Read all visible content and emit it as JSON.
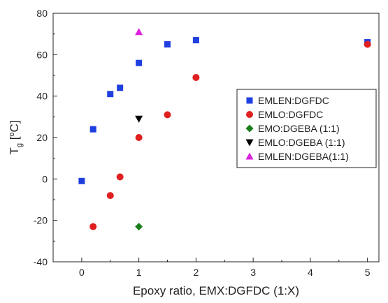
{
  "chart_data": {
    "type": "scatter",
    "xlabel": "Epoxy ratio, EMX:DGFDC (1:X)",
    "ylabel": {
      "base": "T",
      "sub": "g",
      "rest": " [",
      "sup": "o",
      "unit": "C]"
    },
    "xlim": [
      -0.5,
      5.2
    ],
    "ylim": [
      -40,
      80
    ],
    "xticks": [
      0,
      1,
      2,
      3,
      4,
      5
    ],
    "yticks": [
      -40,
      -20,
      0,
      20,
      40,
      60,
      80
    ],
    "grid": false,
    "legend_position": "right-middle",
    "series": [
      {
        "name": "EMLEN:DGFDC",
        "marker": "square",
        "color": "#1f3fe0",
        "points": [
          [
            0,
            -1
          ],
          [
            0.2,
            24
          ],
          [
            0.5,
            41
          ],
          [
            0.67,
            44
          ],
          [
            1,
            56
          ],
          [
            1.5,
            65
          ],
          [
            2,
            67
          ],
          [
            5,
            66
          ]
        ]
      },
      {
        "name": "EMLO:DGFDC",
        "marker": "circle",
        "color": "#e02020",
        "points": [
          [
            0.2,
            -23
          ],
          [
            0.5,
            -8
          ],
          [
            0.67,
            1
          ],
          [
            1,
            20
          ],
          [
            1.5,
            31
          ],
          [
            2,
            49
          ],
          [
            5,
            65
          ]
        ]
      },
      {
        "name": "EMO:DGEBA (1:1)",
        "marker": "diamond",
        "color": "#1a7f1a",
        "points": [
          [
            1,
            -23
          ]
        ]
      },
      {
        "name": "EMLO:DGEBA (1:1)",
        "marker": "triangle-down",
        "color": "#000000",
        "points": [
          [
            1,
            29
          ]
        ]
      },
      {
        "name": "EMLEN:DGEBA(1:1)",
        "marker": "triangle-up",
        "color": "#e020e0",
        "points": [
          [
            1,
            71
          ]
        ]
      }
    ]
  }
}
